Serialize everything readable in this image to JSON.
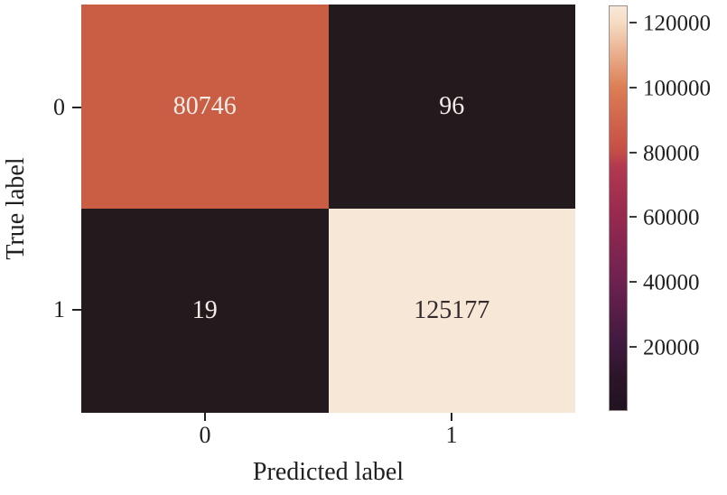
{
  "figure": {
    "background": "#ffffff",
    "text_color": "#1f1f1f"
  },
  "chart_data": {
    "type": "heatmap",
    "subtype": "confusion-matrix",
    "title": "",
    "xlabel": "Predicted label",
    "ylabel": "True label",
    "x_tick_labels": [
      "0",
      "1"
    ],
    "y_tick_labels": [
      "0",
      "1"
    ],
    "matrix": [
      [
        80746,
        96
      ],
      [
        19,
        125177
      ]
    ],
    "cell_colors": [
      [
        "#c95e45",
        "#221a1d"
      ],
      [
        "#221a1d",
        "#f7e7d7"
      ]
    ],
    "cell_text_colors": [
      [
        "#f3ece7",
        "#f3ece7"
      ],
      [
        "#f3ece7",
        "#332a2e"
      ]
    ],
    "grid": false,
    "legend": "none",
    "colorbar": {
      "position": "right",
      "colormap": "rocket",
      "vmin": 19,
      "vmax": 125177,
      "ticks": [
        "120000",
        "100000",
        "80000",
        "60000",
        "40000",
        "20000"
      ],
      "gradient_stops": [
        {
          "pos": 0,
          "color": "#211321"
        },
        {
          "pos": 8,
          "color": "#2c1429"
        },
        {
          "pos": 16,
          "color": "#3e1a3e"
        },
        {
          "pos": 32,
          "color": "#6e2150"
        },
        {
          "pos": 48,
          "color": "#97294f"
        },
        {
          "pos": 60,
          "color": "#b23850"
        },
        {
          "pos": 64.5,
          "color": "#c64f45"
        },
        {
          "pos": 80,
          "color": "#dd7e54"
        },
        {
          "pos": 96,
          "color": "#f5dcc3"
        },
        {
          "pos": 100,
          "color": "#f8e8d9"
        }
      ]
    }
  }
}
